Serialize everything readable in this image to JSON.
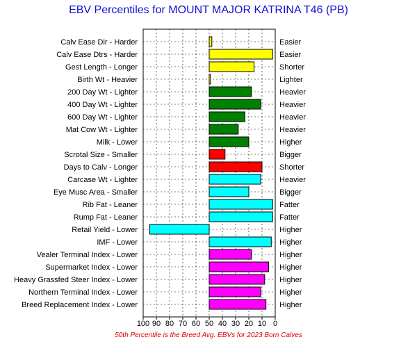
{
  "chart_data": {
    "type": "bar",
    "orientation": "horizontal",
    "title": "EBV Percentiles for MOUNT MAJOR KATRINA T46 (PB)",
    "footnote": "50th Percentile is the Breed Avg. EBVs for 2023 Born Calves",
    "xlim": [
      100,
      0
    ],
    "xticks": [
      100,
      90,
      80,
      70,
      60,
      50,
      40,
      30,
      20,
      10,
      0
    ],
    "baseline": 50,
    "grid": true,
    "categories": [
      {
        "left": "Calv Ease Dir - Harder",
        "right": "Easier",
        "value": 48,
        "color": "#ffff00"
      },
      {
        "left": "Calv Ease Dtrs - Harder",
        "right": "Easier",
        "value": 2,
        "color": "#ffff00"
      },
      {
        "left": "Gest Length - Longer",
        "right": "Shorter",
        "value": 16,
        "color": "#ffff00"
      },
      {
        "left": "Birth Wt - Heavier",
        "right": "Lighter",
        "value": 49,
        "color": "#ffff00"
      },
      {
        "left": "200 Day Wt - Lighter",
        "right": "Heavier",
        "value": 18,
        "color": "#008000"
      },
      {
        "left": "400 Day Wt - Lighter",
        "right": "Heavier",
        "value": 11,
        "color": "#008000"
      },
      {
        "left": "600 Day Wt - Lighter",
        "right": "Heavier",
        "value": 23,
        "color": "#008000"
      },
      {
        "left": "Mat Cow Wt - Lighter",
        "right": "Heavier",
        "value": 28,
        "color": "#008000"
      },
      {
        "left": "Milk - Lower",
        "right": "Higher",
        "value": 20,
        "color": "#008000"
      },
      {
        "left": "Scrotal Size - Smaller",
        "right": "Bigger",
        "value": 38,
        "color": "#ff0000"
      },
      {
        "left": "Days to Calv - Longer",
        "right": "Shorter",
        "value": 10,
        "color": "#ff0000"
      },
      {
        "left": "Carcase Wt - Lighter",
        "right": "Heavier",
        "value": 11,
        "color": "#00ffff"
      },
      {
        "left": "Eye Musc Area - Smaller",
        "right": "Bigger",
        "value": 20,
        "color": "#00ffff"
      },
      {
        "left": "Rib Fat - Leaner",
        "right": "Fatter",
        "value": 2,
        "color": "#00ffff"
      },
      {
        "left": "Rump Fat - Leaner",
        "right": "Fatter",
        "value": 2,
        "color": "#00ffff"
      },
      {
        "left": "Retail Yield - Lower",
        "right": "Higher",
        "value": 95,
        "color": "#00ffff"
      },
      {
        "left": "IMF - Lower",
        "right": "Higher",
        "value": 3,
        "color": "#00ffff"
      },
      {
        "left": "Vealer Terminal Index - Lower",
        "right": "Higher",
        "value": 18,
        "color": "#ff00ff"
      },
      {
        "left": "Supermarket Index - Lower",
        "right": "Higher",
        "value": 5,
        "color": "#ff00ff"
      },
      {
        "left": "Heavy Grassfed Steer Index - Lower",
        "right": "Higher",
        "value": 8,
        "color": "#ff00ff"
      },
      {
        "left": "Northern Terminal Index - Lower",
        "right": "Higher",
        "value": 11,
        "color": "#ff00ff"
      },
      {
        "left": "Breed Replacement Index - Lower",
        "right": "Higher",
        "value": 7,
        "color": "#ff00ff"
      }
    ]
  }
}
